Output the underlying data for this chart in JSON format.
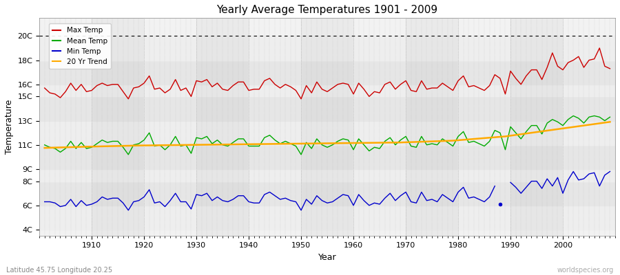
{
  "title": "Yearly Average Temperatures 1901 - 2009",
  "xlabel": "Year",
  "ylabel": "Temperature",
  "footnote_left": "Latitude 45.75 Longitude 20.25",
  "footnote_right": "worldspecies.org",
  "bg_color": "#ffffff",
  "plot_bg_color": "#f0f0f0",
  "years": [
    1901,
    1902,
    1903,
    1904,
    1905,
    1906,
    1907,
    1908,
    1909,
    1910,
    1911,
    1912,
    1913,
    1914,
    1915,
    1916,
    1917,
    1918,
    1919,
    1920,
    1921,
    1922,
    1923,
    1924,
    1925,
    1926,
    1927,
    1928,
    1929,
    1930,
    1931,
    1932,
    1933,
    1934,
    1935,
    1936,
    1937,
    1938,
    1939,
    1940,
    1941,
    1942,
    1943,
    1944,
    1945,
    1946,
    1947,
    1948,
    1949,
    1950,
    1951,
    1952,
    1953,
    1954,
    1955,
    1956,
    1957,
    1958,
    1959,
    1960,
    1961,
    1962,
    1963,
    1964,
    1965,
    1966,
    1967,
    1968,
    1969,
    1970,
    1971,
    1972,
    1973,
    1974,
    1975,
    1976,
    1977,
    1978,
    1979,
    1980,
    1981,
    1982,
    1983,
    1984,
    1985,
    1986,
    1987,
    1988,
    1989,
    1990,
    1991,
    1992,
    1993,
    1994,
    1995,
    1996,
    1997,
    1998,
    1999,
    2000,
    2001,
    2002,
    2003,
    2004,
    2005,
    2006,
    2007,
    2008,
    2009
  ],
  "max_temp": [
    15.7,
    15.3,
    15.2,
    14.9,
    15.4,
    16.1,
    15.5,
    16.0,
    15.4,
    15.5,
    15.9,
    16.1,
    15.9,
    16.0,
    16.0,
    15.4,
    14.8,
    15.7,
    15.8,
    16.1,
    16.7,
    15.6,
    15.7,
    15.3,
    15.6,
    16.4,
    15.5,
    15.7,
    15.0,
    16.3,
    16.2,
    16.4,
    15.8,
    16.1,
    15.6,
    15.5,
    15.9,
    16.2,
    16.2,
    15.5,
    15.6,
    15.6,
    16.3,
    16.5,
    16.0,
    15.7,
    16.0,
    15.8,
    15.5,
    14.8,
    15.9,
    15.3,
    16.2,
    15.6,
    15.4,
    15.7,
    16.0,
    16.1,
    16.0,
    15.2,
    16.1,
    15.6,
    15.0,
    15.4,
    15.3,
    16.0,
    16.2,
    15.6,
    16.0,
    16.3,
    15.5,
    15.4,
    16.3,
    15.6,
    15.7,
    15.7,
    16.1,
    15.8,
    15.5,
    16.3,
    16.7,
    15.8,
    15.9,
    15.7,
    15.5,
    15.9,
    16.8,
    16.5,
    15.2,
    17.1,
    16.5,
    16.0,
    16.7,
    17.2,
    17.2,
    16.4,
    17.4,
    18.6,
    17.5,
    17.2,
    17.8,
    18.0,
    18.3,
    17.4,
    18.0,
    18.1,
    19.0,
    17.5,
    17.3
  ],
  "mean_temp": [
    11.0,
    10.8,
    10.7,
    10.4,
    10.7,
    11.3,
    10.7,
    11.2,
    10.7,
    10.8,
    11.1,
    11.4,
    11.2,
    11.3,
    11.3,
    10.8,
    10.2,
    11.0,
    11.1,
    11.4,
    12.0,
    10.9,
    11.0,
    10.6,
    11.0,
    11.7,
    10.9,
    11.0,
    10.3,
    11.6,
    11.5,
    11.7,
    11.1,
    11.4,
    11.0,
    10.9,
    11.2,
    11.5,
    11.5,
    10.9,
    10.9,
    10.9,
    11.6,
    11.8,
    11.4,
    11.1,
    11.3,
    11.1,
    10.9,
    10.2,
    11.2,
    10.7,
    11.5,
    11.0,
    10.8,
    11.0,
    11.3,
    11.5,
    11.4,
    10.6,
    11.5,
    11.0,
    10.5,
    10.8,
    10.7,
    11.3,
    11.6,
    11.0,
    11.4,
    11.7,
    10.9,
    10.8,
    11.7,
    11.0,
    11.1,
    11.0,
    11.5,
    11.2,
    10.9,
    11.7,
    12.1,
    11.2,
    11.3,
    11.1,
    10.9,
    11.3,
    12.2,
    12.0,
    10.6,
    12.5,
    12.0,
    11.5,
    12.1,
    12.6,
    12.6,
    11.9,
    12.8,
    13.1,
    12.9,
    12.6,
    13.1,
    13.4,
    13.2,
    12.8,
    13.3,
    13.4,
    13.3,
    13.0,
    13.3
  ],
  "min_temp_seg1_years": [
    1901,
    1902,
    1903,
    1904,
    1905,
    1906,
    1907,
    1908,
    1909,
    1910,
    1911,
    1912,
    1913,
    1914,
    1915,
    1916,
    1917,
    1918,
    1919,
    1920,
    1921,
    1922,
    1923,
    1924,
    1925,
    1926,
    1927,
    1928,
    1929,
    1930,
    1931,
    1932,
    1933,
    1934,
    1935,
    1936,
    1937,
    1938,
    1939,
    1940,
    1941,
    1942,
    1943,
    1944,
    1945,
    1946,
    1947,
    1948,
    1949,
    1950,
    1951,
    1952,
    1953,
    1954,
    1955,
    1956,
    1957,
    1958,
    1959,
    1960,
    1961,
    1962,
    1963,
    1964,
    1965,
    1966,
    1967,
    1968,
    1969,
    1970,
    1971,
    1972,
    1973,
    1974,
    1975,
    1976,
    1977,
    1978,
    1979,
    1980,
    1981,
    1982,
    1983,
    1984,
    1985,
    1986,
    1987
  ],
  "min_temp_seg1": [
    6.3,
    6.3,
    6.2,
    5.9,
    6.0,
    6.5,
    5.9,
    6.4,
    6.0,
    6.1,
    6.3,
    6.7,
    6.5,
    6.6,
    6.6,
    6.2,
    5.6,
    6.3,
    6.4,
    6.7,
    7.3,
    6.2,
    6.3,
    5.9,
    6.4,
    7.0,
    6.3,
    6.3,
    5.7,
    6.9,
    6.8,
    7.0,
    6.4,
    6.7,
    6.4,
    6.3,
    6.5,
    6.8,
    6.8,
    6.3,
    6.2,
    6.2,
    6.9,
    7.1,
    6.8,
    6.5,
    6.6,
    6.4,
    6.3,
    5.6,
    6.5,
    6.1,
    6.8,
    6.4,
    6.2,
    6.3,
    6.6,
    6.9,
    6.8,
    6.0,
    6.9,
    6.4,
    6.0,
    6.2,
    6.1,
    6.6,
    7.0,
    6.4,
    6.8,
    7.1,
    6.3,
    6.2,
    7.1,
    6.4,
    6.5,
    6.3,
    6.9,
    6.6,
    6.3,
    7.1,
    7.5,
    6.6,
    6.7,
    6.5,
    6.3,
    6.7,
    7.6
  ],
  "min_temp_seg2_years": [
    1990,
    1991,
    1992,
    1993,
    1994,
    1995,
    1996,
    1997,
    1998,
    1999,
    2000,
    2001,
    2002,
    2003,
    2004,
    2005,
    2006,
    2007,
    2008,
    2009
  ],
  "min_temp_seg2": [
    7.9,
    7.5,
    7.0,
    7.5,
    8.0,
    8.0,
    7.4,
    8.2,
    7.6,
    8.3,
    7.0,
    8.1,
    8.8,
    8.1,
    8.2,
    8.6,
    8.7,
    7.6,
    8.5,
    8.8
  ],
  "dot_x": 1988,
  "dot_y": 6.1,
  "trend_years": [
    1901,
    1909,
    1919,
    1929,
    1939,
    1949,
    1959,
    1969,
    1979,
    1989,
    1999,
    2009
  ],
  "trend_values": [
    10.75,
    10.85,
    10.95,
    11.0,
    11.05,
    11.1,
    11.15,
    11.2,
    11.35,
    11.7,
    12.3,
    12.9
  ],
  "yticks": [
    4,
    6,
    8,
    9,
    11,
    13,
    15,
    16,
    18,
    20
  ],
  "ylabels": [
    "4C",
    "6C",
    "8C",
    "9C",
    "11C",
    "13C",
    "15C",
    "16C",
    "18C",
    "20C"
  ],
  "ylim": [
    3.5,
    21.5
  ],
  "xlim": [
    1900,
    2010
  ],
  "dashed_line_y": 20.0,
  "max_color": "#cc0000",
  "mean_color": "#00aa00",
  "min_color": "#0000cc",
  "trend_color": "#ffaa00",
  "hband_colors": [
    "#e8e8e8",
    "#d8d8d8"
  ],
  "hband_boundaries": [
    4,
    6,
    8,
    9,
    11,
    13,
    15,
    16,
    18,
    20
  ],
  "vband_colors": [
    "#f5f5f5",
    "#e5e5e5"
  ]
}
